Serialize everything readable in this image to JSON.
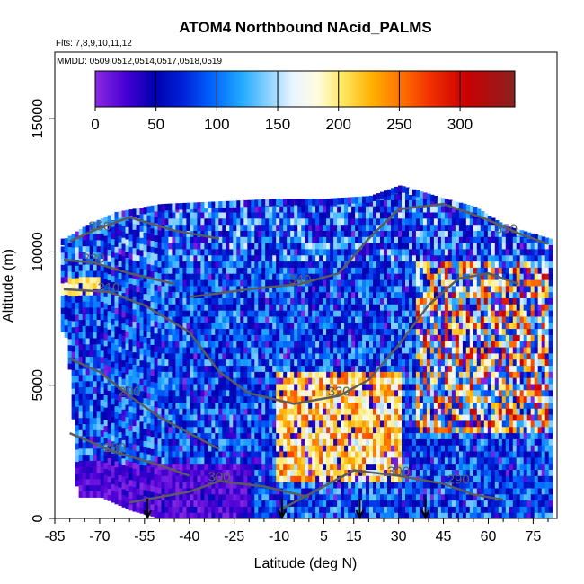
{
  "chart_data": {
    "type": "heatmap",
    "title": "ATOM4 Northbound NAcid_PALMS",
    "subtitle_flights": "Flts: 7,8,9,10,11,12",
    "subtitle_dates": "MMDD: 0509,0512,0514,0517,0518,0519",
    "xlabel": "Latitude (deg N)",
    "ylabel": "Altitude (m)",
    "x_ticks": [
      "-85",
      "-70",
      "-55",
      "-40",
      "-25",
      "-10",
      "5",
      "15",
      "30",
      "45",
      "60",
      "75"
    ],
    "x_tick_values": [
      -85,
      -70,
      -55,
      -40,
      -25,
      -10,
      5,
      15,
      30,
      45,
      60,
      75
    ],
    "y_ticks": [
      "0",
      "5000",
      "10000",
      "15000"
    ],
    "y_tick_values": [
      0,
      5000,
      10000,
      15000
    ],
    "xlim": [
      -85,
      83
    ],
    "ylim": [
      0,
      17500
    ],
    "colorbar": {
      "range": [
        0,
        345
      ],
      "ticks": [
        "0",
        "50",
        "100",
        "150",
        "200",
        "250",
        "300"
      ],
      "tick_values": [
        0,
        50,
        100,
        150,
        200,
        250,
        300
      ]
    },
    "contours": [
      {
        "label": "350",
        "lat": -70,
        "alt": 10800
      },
      {
        "label": "330",
        "lat": -72,
        "alt": 9600
      },
      {
        "label": "310",
        "lat": -67,
        "alt": 8500
      },
      {
        "label": "290",
        "lat": -60,
        "alt": 4600
      },
      {
        "label": "280",
        "lat": -65,
        "alt": 2500
      },
      {
        "label": "300",
        "lat": -30,
        "alt": 1400
      },
      {
        "label": "340",
        "lat": -3,
        "alt": 8800
      },
      {
        "label": "320",
        "lat": 10,
        "alt": 4600
      },
      {
        "label": "300",
        "lat": 30,
        "alt": 1600
      },
      {
        "label": "290",
        "lat": 50,
        "alt": 1300
      },
      {
        "label": "350",
        "lat": 66,
        "alt": 10700
      }
    ],
    "flight_markers_lat": [
      -54,
      -9,
      17,
      39
    ],
    "coverage": {
      "top_alt_by_lat": [
        [
          -82,
          10500
        ],
        [
          -75,
          11000
        ],
        [
          -65,
          11500
        ],
        [
          -50,
          11800
        ],
        [
          -30,
          11900
        ],
        [
          -10,
          12000
        ],
        [
          5,
          12000
        ],
        [
          20,
          12100
        ],
        [
          30,
          12500
        ],
        [
          45,
          12000
        ],
        [
          55,
          11700
        ],
        [
          65,
          11000
        ],
        [
          80,
          10500
        ]
      ],
      "bottom_alt_by_lat": [
        [
          -82,
          7000
        ],
        [
          -80,
          5000
        ],
        [
          -78,
          800
        ],
        [
          -70,
          800
        ],
        [
          -60,
          300
        ],
        [
          -50,
          0
        ],
        [
          80,
          0
        ]
      ]
    }
  }
}
